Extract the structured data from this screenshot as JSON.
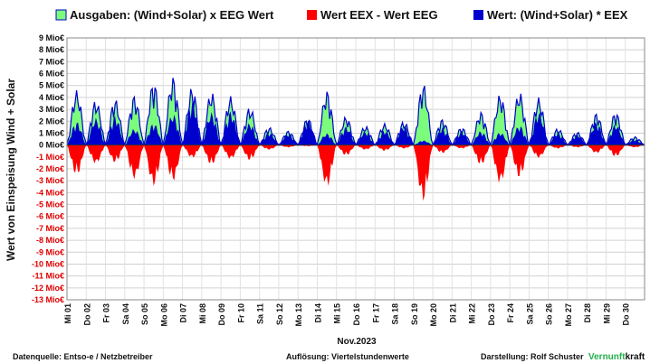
{
  "chart_data": {
    "type": "area",
    "ylabel": "Wert von Einspeisung Wind + Solar",
    "xlabel": "Nov.2023",
    "ylim": [
      -13,
      9
    ],
    "y_ticks": [
      "9 Mio€",
      "8 Mio€",
      "7 Mio€",
      "6 Mio€",
      "5 Mio€",
      "4 Mio€",
      "3 Mio€",
      "2 Mio€",
      "1 Mio€",
      "0 Mio€",
      "-1 Mio€",
      "-2 Mio€",
      "-3 Mio€",
      "-4 Mio€",
      "-5 Mio€",
      "-6 Mio€",
      "-7 Mio€",
      "-8 Mio€",
      "-9 Mio€",
      "-10 Mio€",
      "-11 Mio€",
      "-12 Mio€",
      "-13 Mio€"
    ],
    "categories": [
      "Mi 01",
      "Do 02",
      "Fr 03",
      "Sa 04",
      "So 05",
      "Mo 06",
      "Di 07",
      "Mi 08",
      "Do 09",
      "Fr 10",
      "Sa 11",
      "So 12",
      "Mo 13",
      "Di 14",
      "Mi 15",
      "Do 16",
      "Fr 17",
      "Sa 18",
      "So 19",
      "Mo 20",
      "Di 21",
      "Mi 22",
      "Do 23",
      "Fr 24",
      "Sa 25",
      "So 26",
      "Mo 27",
      "Di 28",
      "Mi 29",
      "Do 30"
    ],
    "grid": true,
    "legend_position": "top",
    "series": [
      {
        "name": "Ausgaben: (Wind+Solar) x EEG Wert",
        "color": "#7CFC7C",
        "values": [
          4.6,
          3.8,
          3.9,
          4.2,
          5.4,
          5.8,
          4.9,
          4.5,
          4.1,
          3.2,
          1.5,
          1.2,
          2.3,
          4.6,
          2.4,
          1.6,
          1.8,
          2.0,
          5.2,
          2.2,
          1.5,
          2.8,
          4.3,
          4.5,
          4.0,
          1.4,
          1.1,
          2.7,
          2.8,
          0.7
        ]
      },
      {
        "name": "Wert EEX - Wert EEG",
        "color": "#FF0000",
        "values": [
          -2.6,
          -1.6,
          -1.5,
          -2.9,
          -3.5,
          -3.1,
          -1.1,
          -1.7,
          -1.2,
          -1.3,
          -0.4,
          -0.2,
          -0.1,
          -3.6,
          -0.9,
          -0.4,
          -0.5,
          -0.3,
          -4.8,
          -0.7,
          -0.3,
          -1.7,
          -3.3,
          -2.8,
          -1.1,
          -0.3,
          -0.2,
          -0.7,
          -1.0,
          -0.2
        ]
      },
      {
        "name": "Wert: (Wind+Solar) * EEX",
        "color": "#0000CD",
        "values": [
          2.0,
          2.3,
          2.5,
          1.4,
          1.9,
          2.7,
          3.9,
          2.8,
          2.9,
          1.9,
          1.1,
          1.0,
          2.2,
          1.0,
          1.6,
          1.2,
          1.3,
          1.7,
          0.4,
          1.5,
          1.2,
          1.2,
          1.1,
          1.7,
          2.9,
          1.1,
          0.9,
          2.0,
          1.8,
          0.5
        ]
      }
    ]
  },
  "footer": {
    "source": "Datenquelle: Entso-e  / Netzbetreiber",
    "resolution": "Auflösung: Viertelstundenwerte",
    "author": "Darstellung: Rolf Schuster",
    "brand_green": "Vernunft",
    "brand_black": "kraft"
  }
}
